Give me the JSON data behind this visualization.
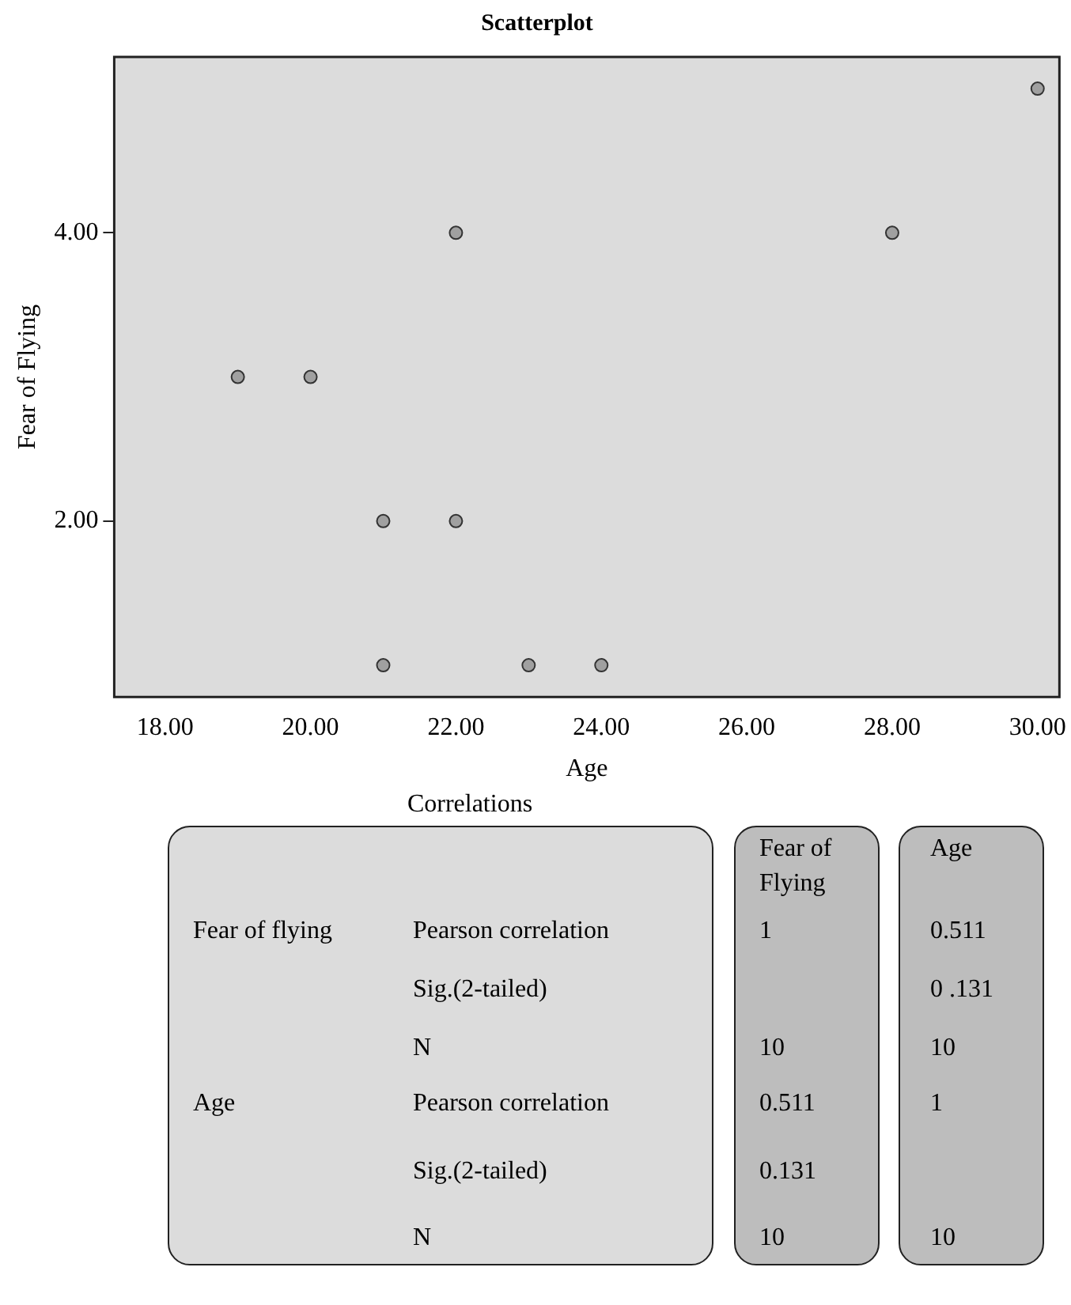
{
  "chart_data": {
    "type": "scatter",
    "title": "Scatterplot",
    "xlabel": "Age",
    "ylabel": "Fear of Flying",
    "x": [
      19,
      20,
      21,
      22,
      21,
      23,
      24,
      22,
      28,
      30
    ],
    "series": [
      {
        "color": "#a0a0a0",
        "values": [
          3,
          3,
          2,
          2,
          1,
          1,
          1,
          4,
          4,
          5
        ]
      }
    ],
    "xlim": [
      17.3,
      30.3
    ],
    "ylim": [
      0.78,
      5.22
    ],
    "xticks": [
      {
        "value": 18,
        "label": "18.00"
      },
      {
        "value": 20,
        "label": "20.00"
      },
      {
        "value": 22,
        "label": "22.00"
      },
      {
        "value": 24,
        "label": "24.00"
      },
      {
        "value": 26,
        "label": "26.00"
      },
      {
        "value": 28,
        "label": "28.00"
      },
      {
        "value": 30,
        "label": "30.00"
      }
    ],
    "yticks": [
      {
        "value": 2,
        "label": "2.00"
      },
      {
        "value": 4,
        "label": "4.00"
      }
    ],
    "grid": false,
    "legend": false,
    "marker": "circle",
    "annotations": [
      "Correlations",
      null,
      null,
      "Fear of Flying",
      "Age",
      "Fear of flying",
      "Pearson correlation",
      "1",
      "0.511",
      null,
      "Sig.(2-tailed)",
      null,
      "0 .131",
      null,
      "N",
      "10",
      "10",
      "Age",
      "Pearson correlation",
      "0.511",
      "1",
      null,
      "Sig.(2-tailed)",
      "0.131",
      null,
      null,
      "N",
      "10",
      "10"
    ]
  }
}
